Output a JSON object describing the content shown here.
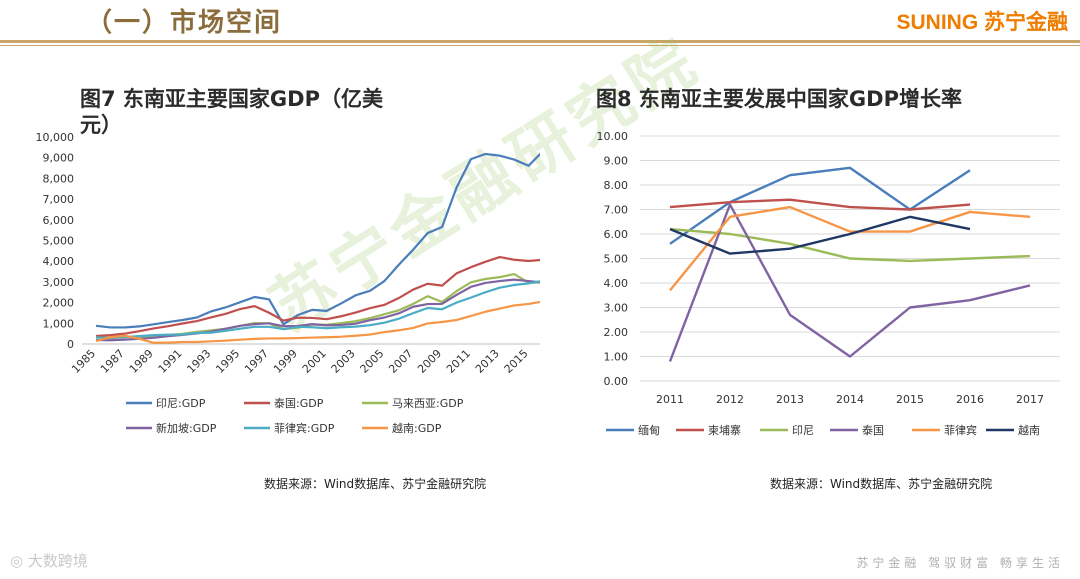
{
  "slide": {
    "title": "（一）市场空间",
    "brand": "SUNING 苏宁金融",
    "watermark": "苏宁金融研究院",
    "footer_left": "大数跨境",
    "footer_right": "苏宁金融  驾驭财富  畅享生活",
    "source_left": "数据来源：Wind数据库、苏宁金融研究院",
    "source_right": "数据来源：Wind数据库、苏宁金融研究院"
  },
  "chart_data": [
    {
      "type": "line",
      "title": "图7 东南亚主要国家GDP（亿美元）",
      "title_line1": "图7 东南亚主要国家GDP（亿美",
      "title_line2": "元）",
      "xlabel": "",
      "ylabel": "",
      "ylim": [
        0,
        10000
      ],
      "y_ticks": [
        0,
        1000,
        2000,
        3000,
        4000,
        5000,
        6000,
        7000,
        8000,
        9000,
        10000
      ],
      "y_tick_labels": [
        "0",
        "1,000",
        "2,000",
        "3,000",
        "4,000",
        "5,000",
        "6,000",
        "7,000",
        "8,000",
        "9,000",
        "10,000"
      ],
      "x": [
        1985,
        1986,
        1987,
        1988,
        1989,
        1990,
        1991,
        1992,
        1993,
        1994,
        1995,
        1996,
        1997,
        1998,
        1999,
        2000,
        2001,
        2002,
        2003,
        2004,
        2005,
        2006,
        2007,
        2008,
        2009,
        2010,
        2011,
        2012,
        2013,
        2014,
        2015,
        2016
      ],
      "x_tick_labels": [
        "1985",
        "1987",
        "1989",
        "1991",
        "1993",
        "1995",
        "1997",
        "1999",
        "2001",
        "2003",
        "2005",
        "2007",
        "2009",
        "2011",
        "2013",
        "2015"
      ],
      "series": [
        {
          "name": "印尼:GDP",
          "color": "#4a7ebb",
          "values": [
            880,
            800,
            800,
            850,
            950,
            1060,
            1160,
            1280,
            1580,
            1770,
            2020,
            2270,
            2160,
            950,
            1400,
            1650,
            1600,
            1960,
            2350,
            2570,
            3040,
            3830,
            4560,
            5360,
            5650,
            7550,
            8930,
            9180,
            9100,
            8910,
            8610,
            9320
          ]
        },
        {
          "name": "泰国:GDP",
          "color": "#c0504d",
          "values": [
            390,
            430,
            500,
            620,
            750,
            860,
            990,
            1110,
            1290,
            1460,
            1690,
            1830,
            1510,
            1130,
            1270,
            1260,
            1200,
            1340,
            1520,
            1730,
            1890,
            2220,
            2630,
            2910,
            2820,
            3410,
            3710,
            3970,
            4200,
            4070,
            4010,
            4070
          ]
        },
        {
          "name": "马来西亚:GDP",
          "color": "#9bbb59",
          "values": [
            320,
            290,
            330,
            360,
            390,
            440,
            490,
            590,
            660,
            740,
            880,
            1010,
            1000,
            720,
            790,
            940,
            930,
            1010,
            1100,
            1250,
            1440,
            1630,
            1940,
            2310,
            2030,
            2550,
            2980,
            3140,
            3230,
            3380,
            2960,
            2970
          ]
        },
        {
          "name": "新加坡:GDP",
          "color": "#8064a2",
          "values": [
            190,
            180,
            210,
            250,
            300,
            380,
            440,
            510,
            600,
            740,
            880,
            960,
            1000,
            860,
            870,
            960,
            900,
            920,
            980,
            1150,
            1280,
            1480,
            1800,
            1930,
            1940,
            2370,
            2760,
            2950,
            3040,
            3110,
            3040,
            2970
          ]
        },
        {
          "name": "菲律宾:GDP",
          "color": "#4bacc6",
          "values": [
            310,
            300,
            340,
            380,
            430,
            450,
            460,
            530,
            550,
            640,
            740,
            830,
            830,
            720,
            830,
            810,
            760,
            810,
            840,
            910,
            1030,
            1220,
            1490,
            1740,
            1680,
            2000,
            2240,
            2500,
            2720,
            2850,
            2930,
            3050
          ]
        },
        {
          "name": "越南:GDP",
          "color": "#f79646",
          "values": [
            140,
            330,
            400,
            250,
            60,
            65,
            96,
            98,
            130,
            163,
            208,
            247,
            268,
            272,
            286,
            311,
            326,
            352,
            398,
            455,
            575,
            663,
            776,
            992,
            1063,
            1159,
            1355,
            1558,
            1714,
            1862,
            1935,
            2053
          ]
        }
      ]
    },
    {
      "type": "line",
      "title": "图8 东南亚主要发展中国家GDP增长率",
      "xlabel": "",
      "ylabel": "",
      "ylim": [
        0,
        10
      ],
      "y_ticks": [
        0,
        1,
        2,
        3,
        4,
        5,
        6,
        7,
        8,
        9,
        10
      ],
      "y_tick_labels": [
        "0.00",
        "1.00",
        "2.00",
        "3.00",
        "4.00",
        "5.00",
        "6.00",
        "7.00",
        "8.00",
        "9.00",
        "10.00"
      ],
      "categories": [
        "2011",
        "2012",
        "2013",
        "2014",
        "2015",
        "2016",
        "2017"
      ],
      "series": [
        {
          "name": "缅甸",
          "color": "#4a7ebb",
          "values": [
            5.6,
            7.3,
            8.4,
            8.7,
            7.0,
            8.6,
            null
          ]
        },
        {
          "name": "柬埔寨",
          "color": "#c0504d",
          "values": [
            7.1,
            7.3,
            7.4,
            7.1,
            7.0,
            7.2,
            null
          ]
        },
        {
          "name": "印尼",
          "color": "#9bbb59",
          "values": [
            6.2,
            6.0,
            5.6,
            5.0,
            4.9,
            5.0,
            5.1
          ]
        },
        {
          "name": "泰国",
          "color": "#8064a2",
          "values": [
            0.8,
            7.2,
            2.7,
            1.0,
            3.0,
            3.3,
            3.9
          ]
        },
        {
          "name": "菲律宾",
          "color": "#f79646",
          "values": [
            3.7,
            6.7,
            7.1,
            6.1,
            6.1,
            6.9,
            6.7
          ]
        },
        {
          "name": "越南",
          "color": "#1f3864",
          "values": [
            6.2,
            5.2,
            5.4,
            6.0,
            6.7,
            6.2,
            null
          ]
        }
      ]
    }
  ]
}
